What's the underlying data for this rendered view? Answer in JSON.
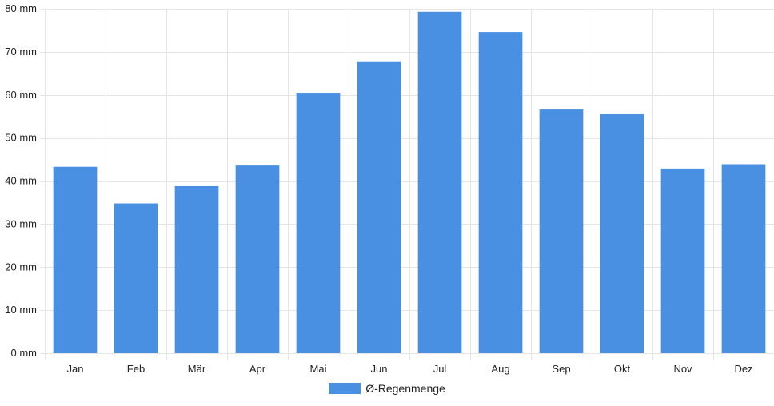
{
  "chart_data": {
    "type": "bar",
    "categories": [
      "Jan",
      "Feb",
      "Mär",
      "Apr",
      "Mai",
      "Jun",
      "Jul",
      "Aug",
      "Sep",
      "Okt",
      "Nov",
      "Dez"
    ],
    "series": [
      {
        "name": "Ø-Regenmenge",
        "values": [
          43.3,
          34.8,
          38.8,
          43.6,
          60.5,
          67.8,
          79.3,
          74.6,
          56.6,
          55.5,
          42.9,
          43.9
        ]
      }
    ],
    "ylim": [
      0,
      80
    ],
    "yticks": [
      0,
      10,
      20,
      30,
      40,
      50,
      60,
      70,
      80
    ],
    "ytick_labels": [
      "0 mm",
      "10 mm",
      "20 mm",
      "30 mm",
      "40 mm",
      "50 mm",
      "60 mm",
      "70 mm",
      "80 mm"
    ],
    "grid": true,
    "legend_position": "bottom",
    "colors": {
      "bar": "#4a90e2",
      "grid": "#e5e5e5"
    }
  },
  "legend": {
    "label": "Ø-Regenmenge"
  }
}
